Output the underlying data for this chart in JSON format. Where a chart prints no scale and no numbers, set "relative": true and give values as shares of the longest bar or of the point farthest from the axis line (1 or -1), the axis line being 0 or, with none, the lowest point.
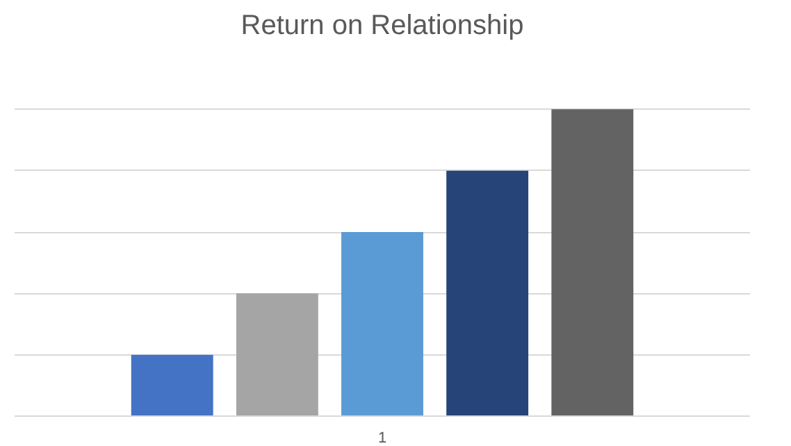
{
  "chart_data": {
    "type": "bar",
    "title": "Return on Relationship",
    "categories": [
      null,
      null,
      "1",
      null,
      null
    ],
    "relative": true,
    "grid": "y",
    "values": [
      0.2,
      0.4,
      0.6,
      0.8,
      1
    ],
    "colors": [
      "#4472c4",
      "#a5a5a5",
      "#5b9bd5",
      "#264478",
      "#636363"
    ]
  }
}
